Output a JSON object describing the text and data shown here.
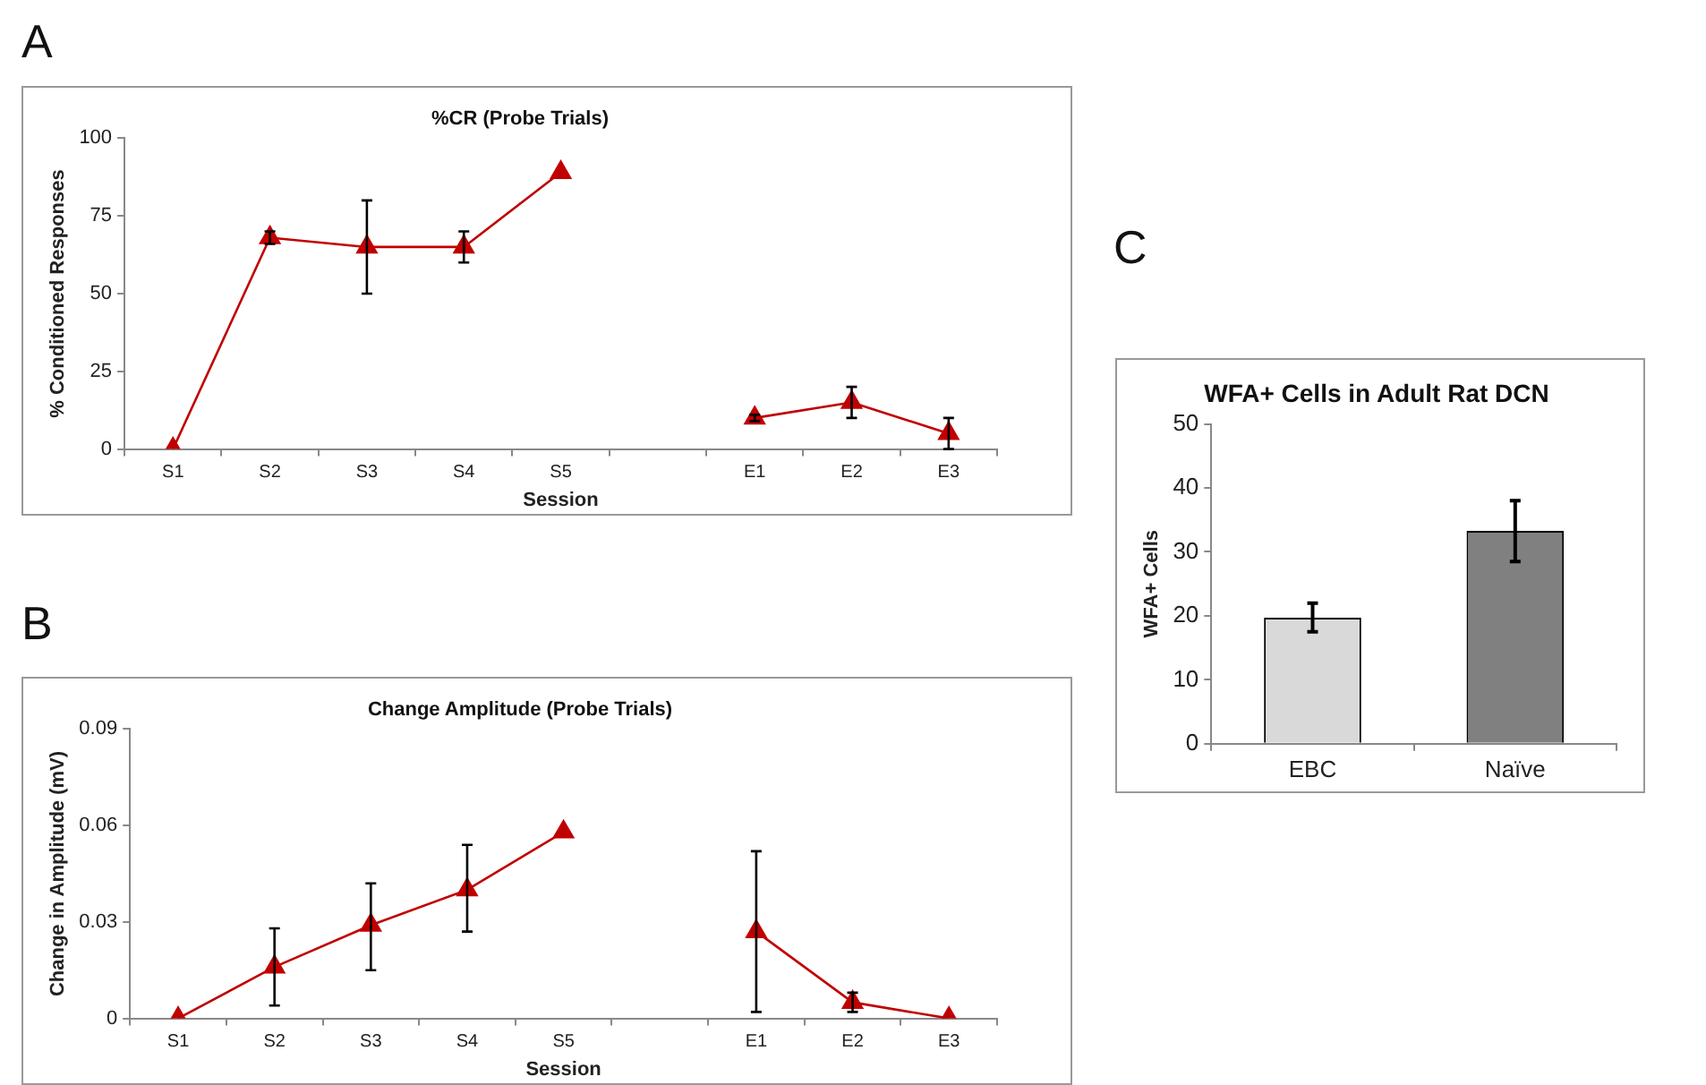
{
  "chart_data": [
    {
      "type": "line",
      "title": "%CR (Probe Trials)",
      "xlabel": "Session",
      "ylabel": "% Conditioned Responses",
      "annotations": [
        "A"
      ],
      "categories": [
        "S1",
        "S2",
        "S3",
        "S4",
        "S5",
        null,
        "E1",
        "E2",
        "E3"
      ],
      "series": [
        {
          "color": "#c00000",
          "values": [
            0,
            68,
            65,
            65,
            89,
            null,
            10,
            15,
            5
          ],
          "errors": [
            null,
            2,
            15,
            5,
            null,
            null,
            1,
            5,
            5
          ]
        }
      ],
      "ylim": [
        0,
        100
      ],
      "yticks": [
        0,
        25,
        50,
        75,
        100
      ],
      "grid": false,
      "legend": false,
      "marker": "triangle",
      "line_style": "solid"
    },
    {
      "type": "line",
      "title": "Change Amplitude (Probe Trials)",
      "xlabel": "Session",
      "ylabel": "Change in Amplitude (mV)",
      "annotations": [
        "B"
      ],
      "categories": [
        "S1",
        "S2",
        "S3",
        "S4",
        "S5",
        null,
        "E1",
        "E2",
        "E3"
      ],
      "series": [
        {
          "color": "#c00000",
          "values": [
            0,
            0.016,
            0.029,
            0.04,
            0.058,
            null,
            0.027,
            0.005,
            0
          ],
          "errors": [
            null,
            [
              0.004,
              0.028
            ],
            [
              0.015,
              0.042
            ],
            [
              0.027,
              0.054
            ],
            null,
            null,
            [
              0.002,
              0.052
            ],
            [
              0.002,
              0.008
            ],
            null
          ]
        }
      ],
      "ylim": [
        0,
        0.09
      ],
      "yticks": [
        0,
        0.03,
        0.06,
        0.09
      ],
      "grid": false,
      "legend": false,
      "marker": "triangle",
      "line_style": "solid"
    },
    {
      "type": "bar",
      "title": "WFA+ Cells in Adult Rat DCN",
      "ylabel": "WFA+ Cells",
      "annotations": [
        "C"
      ],
      "categories": [
        "EBC",
        "Naïve"
      ],
      "values": [
        19.7,
        33.3
      ],
      "colors": [
        "#d9d9d9",
        "#808080"
      ],
      "errors": [
        [
          17.5,
          22
        ],
        [
          28.5,
          38
        ]
      ],
      "ylim": [
        0,
        50
      ],
      "yticks": [
        0,
        10,
        20,
        30,
        40,
        50
      ],
      "grid": false,
      "legend": false
    }
  ]
}
